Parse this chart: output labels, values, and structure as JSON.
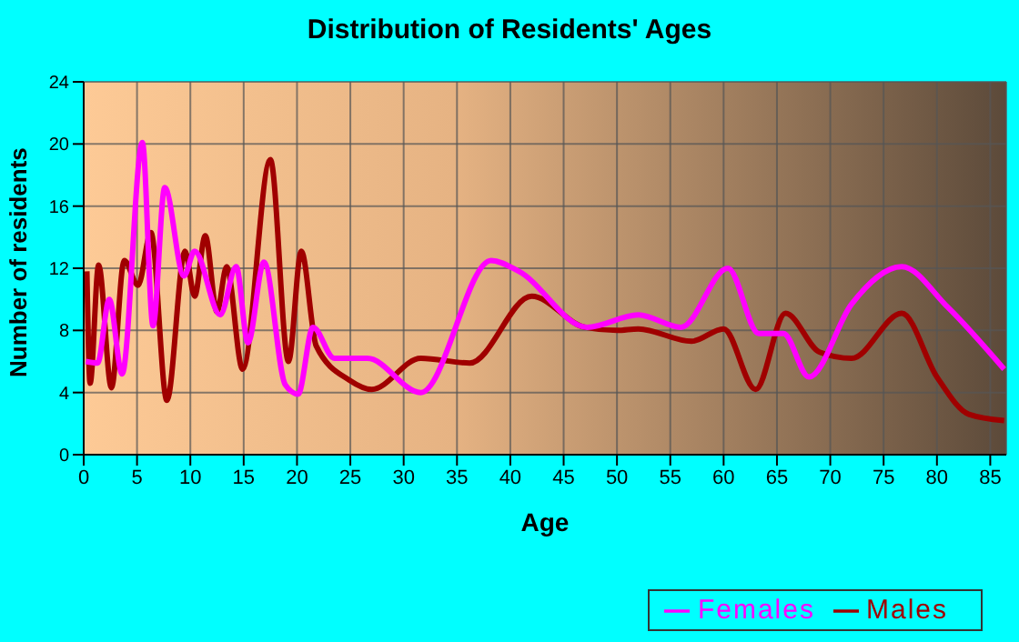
{
  "chart_data": {
    "type": "line",
    "title": "Distribution of Residents' Ages",
    "xlabel": "Age",
    "ylabel": "Number of residents",
    "xlim": [
      0,
      86.5
    ],
    "xticks": [
      0,
      5,
      10,
      15,
      20,
      25,
      30,
      35,
      40,
      45,
      50,
      55,
      60,
      65,
      70,
      75,
      80,
      85
    ],
    "ylim": [
      0,
      24
    ],
    "yticks": [
      0,
      4,
      8,
      12,
      16,
      20,
      24
    ],
    "grid": true,
    "legend": "bottom right",
    "marker": "none",
    "line_style": "solid",
    "series": [
      {
        "name": "Males",
        "color": "#a00000",
        "x": [
          0.3,
          0.6,
          1.4,
          2.6,
          3.8,
          5.1,
          6.3,
          7.8,
          9.5,
          10.4,
          11.4,
          12.5,
          13.4,
          14.9,
          17.5,
          19.2,
          20.4,
          21.8,
          24.9,
          27,
          31.6,
          36.2,
          42,
          47,
          50,
          52,
          57,
          60,
          63,
          65.8,
          69,
          72,
          76.7,
          80,
          83,
          86.3
        ],
        "values": [
          11.8,
          4.6,
          12.2,
          4.3,
          12.5,
          10.9,
          14.3,
          3.5,
          13.1,
          10.2,
          14.1,
          9.2,
          12.1,
          5.5,
          19,
          6,
          13.1,
          7,
          4.8,
          4.2,
          6.2,
          5.9,
          10.2,
          8.2,
          8,
          8.1,
          7.3,
          8.1,
          4.2,
          9.1,
          6.6,
          6.2,
          9.1,
          5,
          2.6,
          2.2
        ]
      },
      {
        "name": "Females",
        "color": "#ff00ff",
        "x": [
          0.2,
          1.3,
          2.4,
          3.6,
          5.5,
          6.5,
          7.6,
          9.4,
          10.4,
          12.8,
          14.3,
          15.4,
          16.9,
          18.9,
          20.1,
          21.5,
          23.5,
          26.6,
          31.6,
          38.2,
          40.8,
          47.2,
          52,
          56,
          60.4,
          63.3,
          65.6,
          68,
          72,
          76.7,
          81,
          86.3
        ],
        "values": [
          6,
          5.9,
          10,
          5.2,
          20.1,
          8.3,
          17.2,
          11.5,
          13.1,
          9,
          12.1,
          7.2,
          12.4,
          4.5,
          3.9,
          8.2,
          6.2,
          6.2,
          4,
          12.5,
          11.8,
          8.2,
          9,
          8.2,
          12,
          7.8,
          7.8,
          5,
          9.7,
          12.1,
          9.5,
          5.5
        ]
      }
    ]
  }
}
